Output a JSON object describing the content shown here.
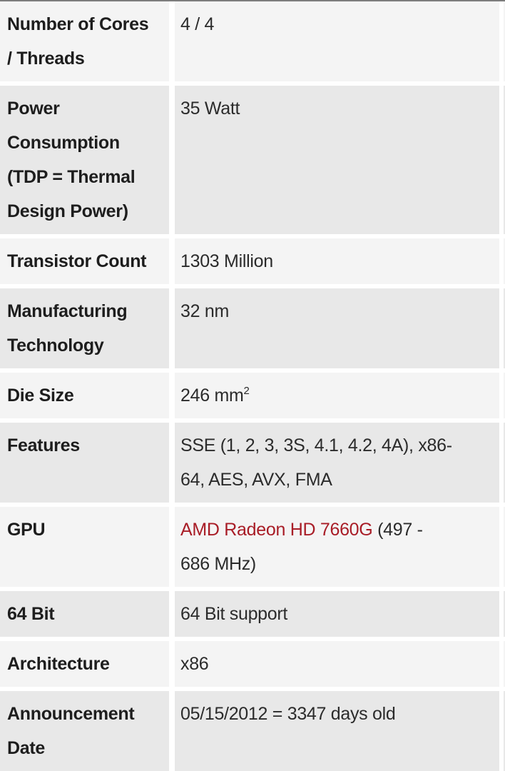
{
  "table": {
    "rows": [
      {
        "label": "Number of Cores / Threads",
        "value": "4 / 4"
      },
      {
        "label": "Power Consumption (TDP = Thermal Design Power)",
        "value": "35 Watt"
      },
      {
        "label": "Transistor Count",
        "value": "1303 Million"
      },
      {
        "label": "Manufacturing Technology",
        "value": "32 nm"
      },
      {
        "label": "Die Size",
        "value_base": "246 mm",
        "value_exponent": "2"
      },
      {
        "label": "Features",
        "value": "SSE (1, 2, 3, 3S, 4.1, 4.2, 4A), x86-64, AES, AVX, FMA"
      },
      {
        "label": "GPU",
        "value_link": "AMD Radeon HD 7660G",
        "value_rest_line1": " (497 -",
        "value_rest_line2": "686 MHz)"
      },
      {
        "label": "64 Bit",
        "value": "64 Bit support"
      },
      {
        "label": "Architecture",
        "value": "x86"
      },
      {
        "label": "Announcement Date",
        "value": "05/15/2012 = 3347 days old"
      }
    ],
    "colors": {
      "row_light": "#f4f4f4",
      "row_dark": "#e8e8e8",
      "link_red": "#a81c26",
      "top_border": "#7d7d7d"
    }
  }
}
